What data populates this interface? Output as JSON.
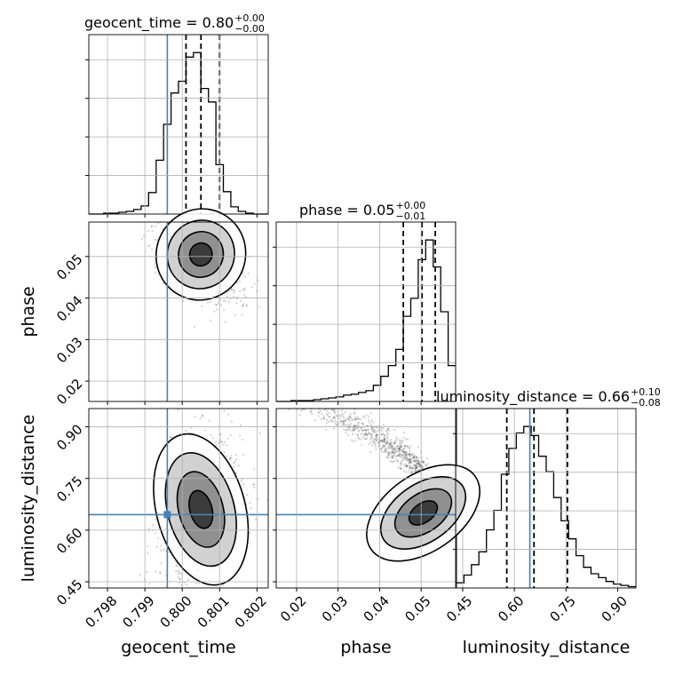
{
  "chart_data": {
    "type": "corner",
    "parameters": [
      "geocent_time",
      "phase",
      "luminosity_distance"
    ],
    "truths": {
      "geocent_time": 0.7996,
      "phase": null,
      "luminosity_distance": 0.645
    },
    "truth_color": "#4682b4",
    "titles": [
      {
        "param": "geocent_time",
        "text": "geocent_time = 0.80",
        "plus": "+0.00",
        "minus": "−0.00"
      },
      {
        "param": "phase",
        "text": "phase = 0.05",
        "plus": "+0.00",
        "minus": "−0.01"
      },
      {
        "param": "luminosity_distance",
        "text": "luminosity_distance = 0.66",
        "plus": "+0.10",
        "minus": "−0.08"
      }
    ],
    "axes": {
      "geocent_time": {
        "label": "geocent_time",
        "range": [
          0.7975,
          0.8023
        ],
        "ticks": [
          0.798,
          0.799,
          0.8,
          0.801,
          0.802
        ],
        "tick_labels": [
          "0.798",
          "0.799",
          "0.800",
          "0.801",
          "0.802"
        ]
      },
      "phase": {
        "label": "phase",
        "range": [
          0.0151,
          0.0583
        ],
        "ticks": [
          0.02,
          0.03,
          0.04,
          0.05
        ],
        "tick_labels": [
          "0.02",
          "0.03",
          "0.04",
          "0.05"
        ]
      },
      "luminosity_distance": {
        "label": "luminosity_distance",
        "range": [
          0.432,
          0.953
        ],
        "ticks": [
          0.45,
          0.6,
          0.75,
          0.9
        ],
        "tick_labels": [
          "0.45",
          "0.60",
          "0.75",
          "0.90"
        ]
      }
    },
    "histograms": [
      {
        "param": "geocent_time",
        "bin_edges": [
          0.7975,
          0.7977,
          0.7979,
          0.7981,
          0.7983,
          0.7985,
          0.7987,
          0.7989,
          0.7991,
          0.7993,
          0.7995,
          0.7997,
          0.7999,
          0.8001,
          0.8003,
          0.8005,
          0.8007,
          0.8009,
          0.8011,
          0.8013,
          0.8015,
          0.8017,
          0.8019,
          0.8021,
          0.8023
        ],
        "counts": [
          0,
          0,
          1,
          1,
          2,
          3,
          5,
          9,
          24,
          60,
          100,
          135,
          148,
          175,
          180,
          140,
          125,
          55,
          25,
          8,
          3,
          1,
          0,
          0
        ],
        "quantiles": [
          0.8001,
          0.8005,
          0.801
        ]
      },
      {
        "param": "phase",
        "bin_edges": [
          0.0151,
          0.0169,
          0.0187,
          0.0205,
          0.0223,
          0.0241,
          0.0259,
          0.0277,
          0.0295,
          0.0313,
          0.0331,
          0.0349,
          0.0367,
          0.0385,
          0.0403,
          0.0421,
          0.0439,
          0.0457,
          0.0475,
          0.0493,
          0.0511,
          0.0529,
          0.0547,
          0.0565,
          0.0583
        ],
        "counts": [
          0,
          0,
          1,
          1,
          1,
          2,
          3,
          4,
          5,
          7,
          8,
          10,
          12,
          18,
          28,
          40,
          58,
          95,
          115,
          158,
          180,
          150,
          100,
          40
        ],
        "quantiles": [
          0.0457,
          0.0502,
          0.0534
        ]
      },
      {
        "param": "luminosity_distance",
        "bin_edges": [
          0.432,
          0.4537,
          0.4754,
          0.4971,
          0.5188,
          0.5405,
          0.5622,
          0.5839,
          0.6056,
          0.6273,
          0.649,
          0.6707,
          0.6924,
          0.7141,
          0.7358,
          0.7575,
          0.7792,
          0.8009,
          0.8226,
          0.8443,
          0.866,
          0.8877,
          0.9094,
          0.9311,
          0.953
        ],
        "counts": [
          4,
          10,
          18,
          28,
          45,
          60,
          88,
          108,
          120,
          125,
          118,
          102,
          90,
          70,
          52,
          38,
          25,
          16,
          11,
          8,
          5,
          3,
          2,
          1
        ],
        "quantiles": [
          0.578,
          0.657,
          0.754
        ]
      }
    ]
  }
}
